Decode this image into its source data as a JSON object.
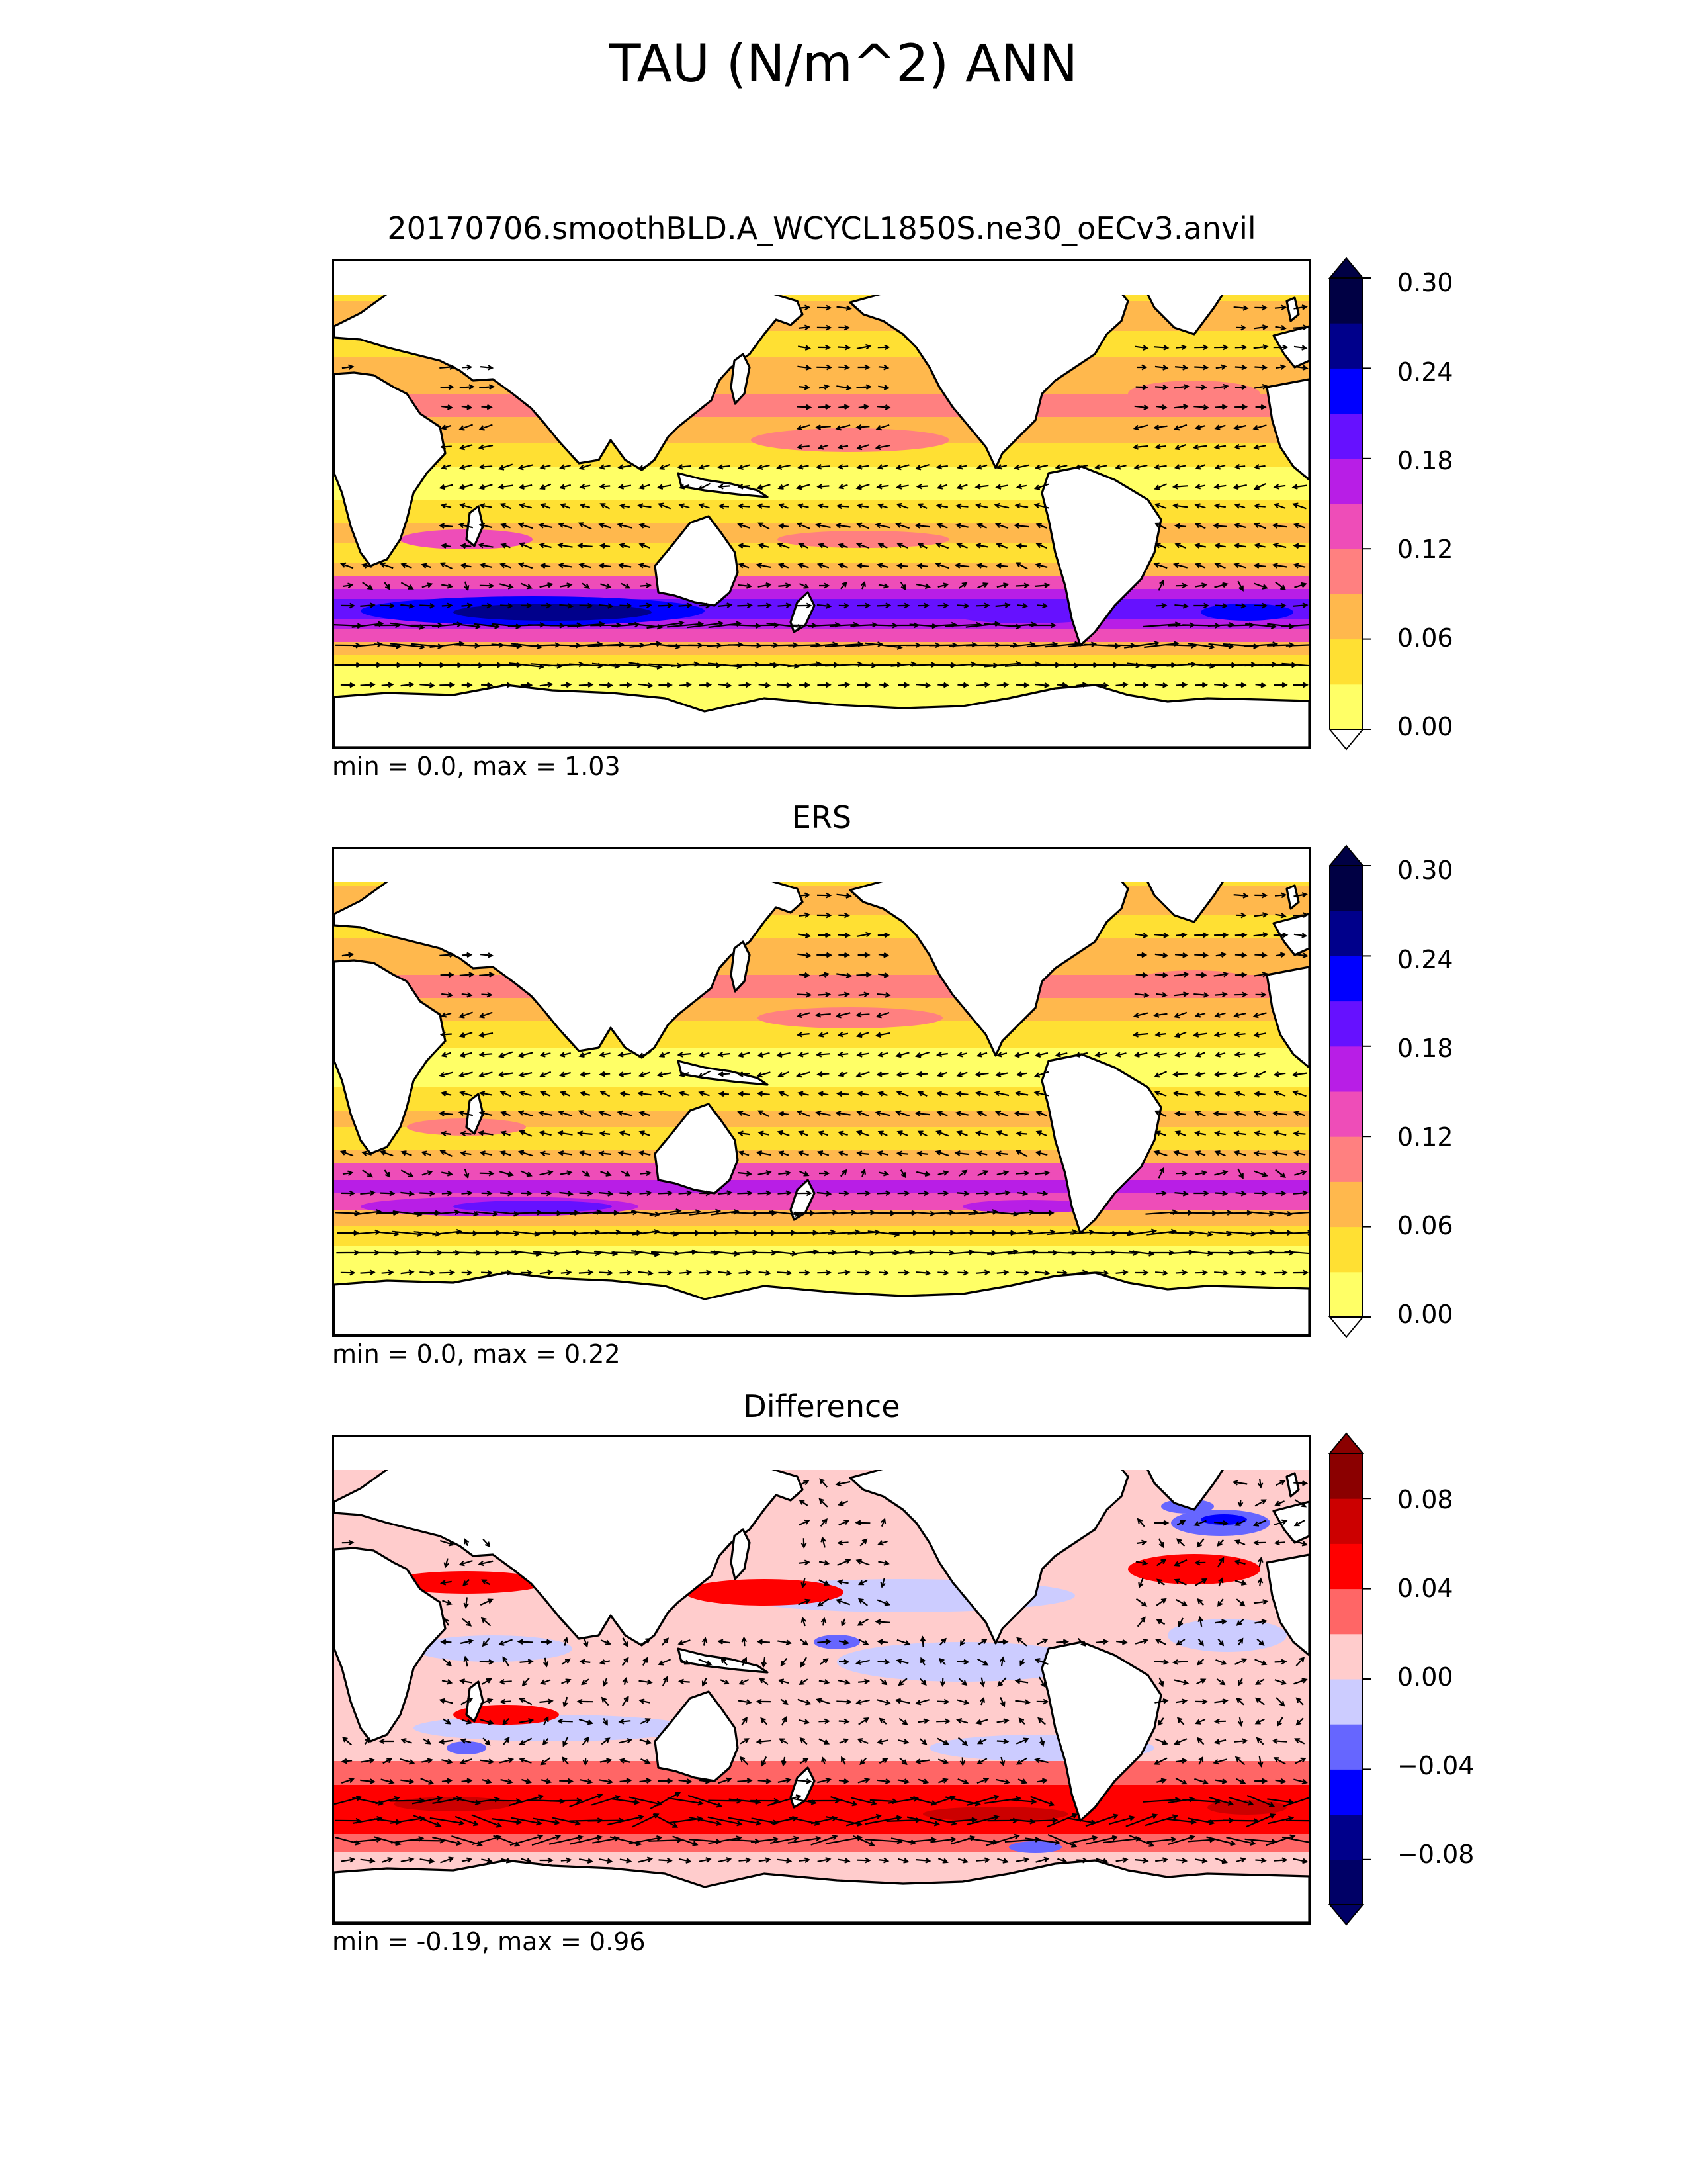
{
  "figure": {
    "title": "TAU (N/m^2) ANN"
  },
  "colors": {
    "land": "#ffffff",
    "coast": "#000000",
    "seq": [
      "#ffff66",
      "#ffe033",
      "#ffb84d",
      "#ff8080",
      "#ee4db8",
      "#b81ee6",
      "#6611ff",
      "#0000ff",
      "#00008b",
      "#000044"
    ],
    "div": [
      "#000066",
      "#00008b",
      "#0000ff",
      "#6666ff",
      "#ccccff",
      "#ffcccc",
      "#ff6666",
      "#ff0000",
      "#cc0000",
      "#8b0000"
    ]
  },
  "panels": [
    {
      "title": "20170706.smoothBLD.A_WCYCL1850S.ne30_oECv3.anvil",
      "stats": "min = 0.0, max = 1.03",
      "colorbar": {
        "ticks": [
          "0.30",
          "0.24",
          "0.18",
          "0.12",
          "0.06",
          "0.00"
        ]
      }
    },
    {
      "title": "ERS",
      "stats": "min = 0.0, max = 0.22",
      "colorbar": {
        "ticks": [
          "0.30",
          "0.24",
          "0.18",
          "0.12",
          "0.06",
          "0.00"
        ]
      }
    },
    {
      "title": "Difference",
      "stats": "min = -0.19, max = 0.96",
      "colorbar": {
        "ticks": [
          "0.08",
          "0.04",
          "0.00",
          "−0.04",
          "−0.08"
        ]
      }
    }
  ]
}
